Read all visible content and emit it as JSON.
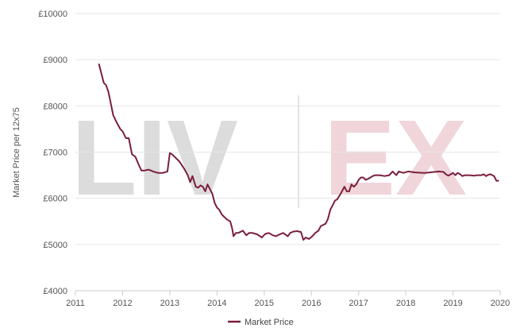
{
  "colors": {
    "series": "#7a1f3d",
    "grid": "#e6e6e6",
    "axis": "#cccccc",
    "tick_text": "#555555",
    "watermark_left": "#dcdcdc",
    "watermark_right": "#f0d5da"
  },
  "watermark": {
    "left": "LIV",
    "right": "EX"
  },
  "chart_data": {
    "type": "line",
    "title": "",
    "xlabel": "",
    "ylabel": "Market Price per 12x75",
    "grid": true,
    "legend_position": "bottom-center",
    "xlim": [
      2011,
      2020
    ],
    "ylim": [
      4000,
      10000
    ],
    "x_ticks": [
      2011,
      2012,
      2013,
      2014,
      2015,
      2016,
      2017,
      2018,
      2019,
      2020
    ],
    "x_tick_labels": [
      "2011",
      "2012",
      "2013",
      "2014",
      "2015",
      "2016",
      "2017",
      "2018",
      "2019",
      "2020"
    ],
    "y_ticks": [
      4000,
      5000,
      6000,
      7000,
      8000,
      9000,
      10000
    ],
    "y_tick_labels": [
      "£4000",
      "£5000",
      "£6000",
      "£7000",
      "£8000",
      "£9000",
      "£10000"
    ],
    "series": [
      {
        "name": "Market Price",
        "x": [
          2011.5,
          2011.55,
          2011.6,
          2011.65,
          2011.7,
          2011.75,
          2011.8,
          2011.87,
          2011.95,
          2012.0,
          2012.07,
          2012.13,
          2012.2,
          2012.27,
          2012.33,
          2012.4,
          2012.45,
          2012.55,
          2012.65,
          2012.75,
          2012.85,
          2012.95,
          2013.0,
          2013.05,
          2013.1,
          2013.2,
          2013.3,
          2013.38,
          2013.43,
          2013.48,
          2013.55,
          2013.6,
          2013.65,
          2013.7,
          2013.75,
          2013.8,
          2013.85,
          2013.9,
          2013.95,
          2014.0,
          2014.05,
          2014.1,
          2014.2,
          2014.28,
          2014.32,
          2014.35,
          2014.4,
          2014.45,
          2014.55,
          2014.62,
          2014.68,
          2014.75,
          2014.85,
          2014.95,
          2015.02,
          2015.1,
          2015.18,
          2015.25,
          2015.33,
          2015.4,
          2015.5,
          2015.55,
          2015.62,
          2015.7,
          2015.78,
          2015.83,
          2015.88,
          2015.95,
          2016.02,
          2016.08,
          2016.15,
          2016.2,
          2016.3,
          2016.35,
          2016.4,
          2016.45,
          2016.5,
          2016.55,
          2016.62,
          2016.7,
          2016.75,
          2016.8,
          2016.85,
          2016.9,
          2016.95,
          2017.0,
          2017.05,
          2017.1,
          2017.15,
          2017.2,
          2017.25,
          2017.3,
          2017.35,
          2017.45,
          2017.55,
          2017.65,
          2017.72,
          2017.8,
          2017.85,
          2017.95,
          2018.05,
          2018.2,
          2018.4,
          2018.6,
          2018.7,
          2018.8,
          2018.85,
          2018.9,
          2019.0,
          2019.05,
          2019.1,
          2019.15,
          2019.2,
          2019.25,
          2019.35,
          2019.45,
          2019.5,
          2019.6,
          2019.65,
          2019.7,
          2019.75,
          2019.8,
          2019.83,
          2019.87,
          2019.92,
          2019.96
        ],
        "values": [
          8900,
          8700,
          8500,
          8450,
          8300,
          8050,
          7800,
          7650,
          7500,
          7450,
          7300,
          7300,
          6950,
          6900,
          6750,
          6600,
          6600,
          6620,
          6580,
          6550,
          6550,
          6580,
          6980,
          6950,
          6900,
          6800,
          6650,
          6500,
          6350,
          6480,
          6250,
          6230,
          6280,
          6250,
          6150,
          6300,
          6200,
          6100,
          5900,
          5800,
          5750,
          5650,
          5550,
          5500,
          5350,
          5180,
          5250,
          5250,
          5300,
          5200,
          5250,
          5250,
          5220,
          5150,
          5230,
          5250,
          5200,
          5180,
          5220,
          5250,
          5180,
          5250,
          5280,
          5290,
          5270,
          5100,
          5150,
          5120,
          5180,
          5250,
          5300,
          5400,
          5450,
          5550,
          5750,
          5850,
          5950,
          5980,
          6100,
          6250,
          6150,
          6150,
          6300,
          6250,
          6300,
          6400,
          6450,
          6450,
          6400,
          6420,
          6450,
          6480,
          6500,
          6500,
          6480,
          6500,
          6580,
          6500,
          6580,
          6550,
          6580,
          6560,
          6550,
          6570,
          6580,
          6570,
          6520,
          6490,
          6550,
          6500,
          6550,
          6520,
          6480,
          6500,
          6500,
          6490,
          6500,
          6500,
          6520,
          6480,
          6510,
          6520,
          6500,
          6480,
          6380,
          6380
        ]
      }
    ]
  }
}
